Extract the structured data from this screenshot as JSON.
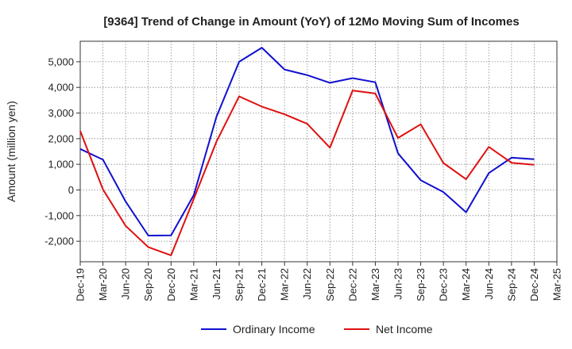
{
  "chart_data": {
    "type": "line",
    "title": "[9364]  Trend of Change in Amount (YoY) of 12Mo Moving Sum of Incomes",
    "xlabel": "",
    "ylabel": "Amount (million yen)",
    "categories": [
      "Dec-19",
      "Mar-20",
      "Jun-20",
      "Sep-20",
      "Dec-20",
      "Mar-21",
      "Jun-21",
      "Sep-21",
      "Dec-21",
      "Mar-22",
      "Jun-22",
      "Sep-22",
      "Dec-22",
      "Mar-23",
      "Jun-23",
      "Sep-23",
      "Dec-23",
      "Mar-24",
      "Jun-24",
      "Sep-24",
      "Dec-24",
      "Mar-25"
    ],
    "ylim": [
      -2800,
      5800
    ],
    "yticks": [
      -2000,
      -1000,
      0,
      1000,
      2000,
      3000,
      4000,
      5000
    ],
    "ytick_labels": [
      "-2,000",
      "-1,000",
      "0",
      "1,000",
      "2,000",
      "3,000",
      "4,000",
      "5,000"
    ],
    "grid": true,
    "legend_position": "bottom",
    "series": [
      {
        "name": "Ordinary Income",
        "color": "#1010d0",
        "values": [
          1600,
          1180,
          -450,
          -1780,
          -1770,
          -200,
          2850,
          5000,
          5550,
          4700,
          4480,
          4180,
          4360,
          4200,
          1430,
          380,
          -80,
          -870,
          660,
          1260,
          1200,
          null
        ]
      },
      {
        "name": "Net Income",
        "color": "#e01010",
        "values": [
          2300,
          20,
          -1400,
          -2230,
          -2550,
          -350,
          1880,
          3650,
          3250,
          2950,
          2580,
          1650,
          3880,
          3760,
          2030,
          2560,
          1050,
          420,
          1680,
          1060,
          980,
          null
        ]
      }
    ]
  }
}
